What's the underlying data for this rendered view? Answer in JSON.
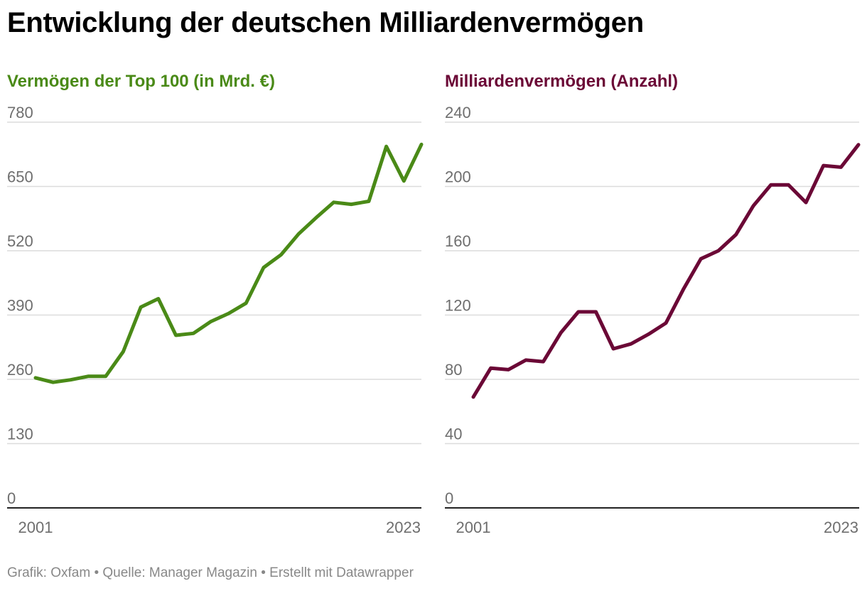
{
  "title": "Entwicklung der deutschen Milliardenvermögen",
  "footer": "Grafik: Oxfam • Quelle: Manager Magazin • Erstellt mit Datawrapper",
  "chart_data": [
    {
      "type": "line",
      "title": "Vermögen der Top 100 (in Mrd. €)",
      "color": "#4a8a17",
      "x": [
        2001,
        2002,
        2003,
        2004,
        2005,
        2006,
        2007,
        2008,
        2009,
        2010,
        2011,
        2012,
        2013,
        2014,
        2015,
        2016,
        2017,
        2018,
        2019,
        2020,
        2021,
        2022,
        2023
      ],
      "values": [
        263,
        254,
        259,
        266,
        266,
        316,
        406,
        423,
        349,
        353,
        377,
        393,
        414,
        486,
        512,
        554,
        587,
        618,
        614,
        620,
        731,
        661,
        735
      ],
      "yticks": [
        0,
        130,
        260,
        390,
        520,
        650,
        780
      ],
      "xticks": [
        "2001",
        "2023"
      ],
      "ylim": [
        0,
        780
      ],
      "xlim": [
        2001,
        2023
      ],
      "grid": true
    },
    {
      "type": "line",
      "title": "Milliardenvermögen (Anzahl)",
      "color": "#6b0836",
      "x": [
        2001,
        2002,
        2003,
        2004,
        2005,
        2006,
        2007,
        2008,
        2009,
        2010,
        2011,
        2012,
        2013,
        2014,
        2015,
        2016,
        2017,
        2018,
        2019,
        2020,
        2021,
        2022,
        2023
      ],
      "values": [
        69,
        87,
        86,
        92,
        91,
        109,
        122,
        122,
        99,
        102,
        108,
        115,
        136,
        155,
        160,
        170,
        188,
        201,
        201,
        190,
        213,
        212,
        226
      ],
      "yticks": [
        0,
        40,
        80,
        120,
        160,
        200,
        240
      ],
      "xticks": [
        "2001",
        "2023"
      ],
      "ylim": [
        0,
        240
      ],
      "xlim": [
        2001,
        2023
      ],
      "grid": true
    }
  ]
}
